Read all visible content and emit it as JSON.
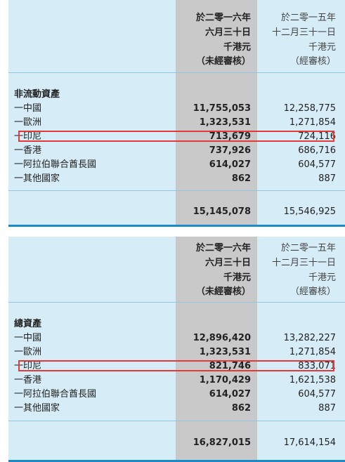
{
  "columns": {
    "col1": [
      "於二零一六年",
      "六月三十日",
      "千港元",
      "（未經審核）"
    ],
    "col2": [
      "於二零一五年",
      "十二月三十一日",
      "千港元",
      "（經審核）"
    ]
  },
  "table1": {
    "section": "非流動資產",
    "rows": [
      {
        "label": "一中國",
        "v1": "11,755,053",
        "v2": "12,258,775"
      },
      {
        "label": "一歐洲",
        "v1": "1,323,531",
        "v2": "1,271,854"
      },
      {
        "label": "一印尼",
        "v1": "713,679",
        "v2": "724,116"
      },
      {
        "label": "一香港",
        "v1": "737,926",
        "v2": "686,716"
      },
      {
        "label": "一阿拉伯聯合酋長國",
        "v1": "614,027",
        "v2": "604,577"
      },
      {
        "label": "一其他國家",
        "v1": "862",
        "v2": "887"
      }
    ],
    "total": {
      "v1": "15,145,078",
      "v2": "15,546,925"
    }
  },
  "table2": {
    "section": "總資產",
    "rows": [
      {
        "label": "一中國",
        "v1": "12,896,420",
        "v2": "13,282,227"
      },
      {
        "label": "一歐洲",
        "v1": "1,323,531",
        "v2": "1,271,854"
      },
      {
        "label": "一印尼",
        "v1": "821,746",
        "v2": "833,071"
      },
      {
        "label": "一香港",
        "v1": "1,170,429",
        "v2": "1,621,538"
      },
      {
        "label": "一阿拉伯聯合酋長國",
        "v1": "614,027",
        "v2": "604,577"
      },
      {
        "label": "一其他國家",
        "v1": "862",
        "v2": "887"
      }
    ],
    "total": {
      "v1": "16,827,015",
      "v2": "17,614,154"
    }
  },
  "colors": {
    "panel": "#d6ecf7",
    "shade": "#c9c9c9",
    "rule": "#1b8ac9",
    "highlight": "#e03a3a"
  }
}
